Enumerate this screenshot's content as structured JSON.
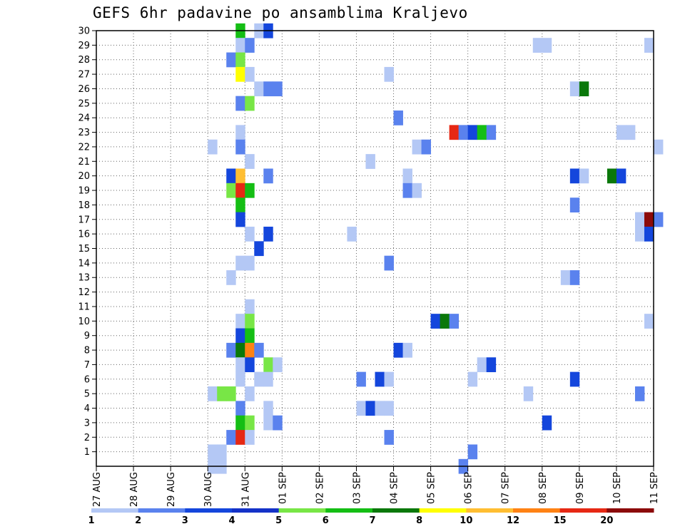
{
  "chart_data": {
    "type": "heatmap",
    "title": "GEFS 6hr padavine po ansamblima Kraljevo",
    "xlabel": "",
    "ylabel": "",
    "x_tick_labels": [
      "27 AUG",
      "28 AUG",
      "29 AUG",
      "30 AUG",
      "31 AUG",
      "01 SEP",
      "02 SEP",
      "03 SEP",
      "04 SEP",
      "05 SEP",
      "06 SEP",
      "07 SEP",
      "08 SEP",
      "09 SEP",
      "10 SEP",
      "11 SEP"
    ],
    "y_tick_labels": [
      "1",
      "2",
      "3",
      "4",
      "5",
      "6",
      "7",
      "8",
      "9",
      "10",
      "11",
      "12",
      "13",
      "14",
      "15",
      "16",
      "17",
      "18",
      "19",
      "20",
      "21",
      "22",
      "23",
      "24",
      "25",
      "26",
      "27",
      "28",
      "29",
      "30"
    ],
    "time_step_hours": 6,
    "member_range": [
      0,
      30
    ],
    "grid": true,
    "legend_placement": "bottom",
    "colorbar": {
      "labels": [
        "1",
        "2",
        "3",
        "4",
        "5",
        "6",
        "7",
        "8",
        "10",
        "12",
        "15",
        "20"
      ],
      "colors": [
        "#b4c8f5",
        "#5a82ee",
        "#1446dc",
        "#1432c8",
        "#78e646",
        "#14be14",
        "#0a780a",
        "#ffff00",
        "#ffbe32",
        "#ff8214",
        "#e62814",
        "#8c0a0a"
      ]
    },
    "cells": [
      {
        "member": 30,
        "date": "30 AUG 18Z",
        "cls": 6
      },
      {
        "member": 30,
        "date": "31 AUG 06Z",
        "cls": 1
      },
      {
        "member": 30,
        "date": "31 AUG 12Z",
        "cls": 3
      },
      {
        "member": 29,
        "date": "30 AUG 18Z",
        "cls": 1
      },
      {
        "member": 29,
        "date": "31 AUG 00Z",
        "cls": 2
      },
      {
        "member": 29,
        "date": "07 SEP 18Z",
        "cls": 1
      },
      {
        "member": 29,
        "date": "08 SEP 00Z",
        "cls": 1
      },
      {
        "member": 29,
        "date": "10 SEP 18Z",
        "cls": 1
      },
      {
        "member": 28,
        "date": "30 AUG 12Z",
        "cls": 2
      },
      {
        "member": 28,
        "date": "30 AUG 18Z",
        "cls": 5
      },
      {
        "member": 27,
        "date": "30 AUG 18Z",
        "cls": 8
      },
      {
        "member": 27,
        "date": "31 AUG 00Z",
        "cls": 1
      },
      {
        "member": 27,
        "date": "03 SEP 18Z",
        "cls": 1
      },
      {
        "member": 26,
        "date": "31 AUG 06Z",
        "cls": 1
      },
      {
        "member": 26,
        "date": "31 AUG 12Z",
        "cls": 2
      },
      {
        "member": 26,
        "date": "31 AUG 18Z",
        "cls": 2
      },
      {
        "member": 26,
        "date": "08 SEP 18Z",
        "cls": 1
      },
      {
        "member": 26,
        "date": "09 SEP 00Z",
        "cls": 7
      },
      {
        "member": 25,
        "date": "30 AUG 18Z",
        "cls": 2
      },
      {
        "member": 25,
        "date": "31 AUG 00Z",
        "cls": 5
      },
      {
        "member": 24,
        "date": "04 SEP 00Z",
        "cls": 2
      },
      {
        "member": 23,
        "date": "30 AUG 18Z",
        "cls": 1
      },
      {
        "member": 23,
        "date": "05 SEP 12Z",
        "cls": 11
      },
      {
        "member": 23,
        "date": "05 SEP 18Z",
        "cls": 2
      },
      {
        "member": 23,
        "date": "06 SEP 00Z",
        "cls": 3
      },
      {
        "member": 23,
        "date": "06 SEP 06Z",
        "cls": 6
      },
      {
        "member": 23,
        "date": "06 SEP 12Z",
        "cls": 2
      },
      {
        "member": 23,
        "date": "10 SEP 00Z",
        "cls": 1
      },
      {
        "member": 23,
        "date": "10 SEP 06Z",
        "cls": 1
      },
      {
        "member": 22,
        "date": "30 AUG 00Z",
        "cls": 1
      },
      {
        "member": 22,
        "date": "30 AUG 18Z",
        "cls": 2
      },
      {
        "member": 22,
        "date": "04 SEP 12Z",
        "cls": 1
      },
      {
        "member": 22,
        "date": "04 SEP 18Z",
        "cls": 2
      },
      {
        "member": 22,
        "date": "11 SEP 00Z",
        "cls": 1
      },
      {
        "member": 21,
        "date": "31 AUG 00Z",
        "cls": 1
      },
      {
        "member": 21,
        "date": "03 SEP 06Z",
        "cls": 1
      },
      {
        "member": 20,
        "date": "30 AUG 12Z",
        "cls": 3
      },
      {
        "member": 20,
        "date": "30 AUG 18Z",
        "cls": 9
      },
      {
        "member": 20,
        "date": "31 AUG 12Z",
        "cls": 2
      },
      {
        "member": 20,
        "date": "04 SEP 06Z",
        "cls": 1
      },
      {
        "member": 20,
        "date": "08 SEP 18Z",
        "cls": 3
      },
      {
        "member": 20,
        "date": "09 SEP 00Z",
        "cls": 1
      },
      {
        "member": 20,
        "date": "09 SEP 18Z",
        "cls": 7
      },
      {
        "member": 20,
        "date": "10 SEP 00Z",
        "cls": 3
      },
      {
        "member": 19,
        "date": "30 AUG 12Z",
        "cls": 5
      },
      {
        "member": 19,
        "date": "30 AUG 18Z",
        "cls": 11
      },
      {
        "member": 19,
        "date": "31 AUG 00Z",
        "cls": 6
      },
      {
        "member": 19,
        "date": "04 SEP 06Z",
        "cls": 2
      },
      {
        "member": 19,
        "date": "04 SEP 12Z",
        "cls": 1
      },
      {
        "member": 18,
        "date": "30 AUG 18Z",
        "cls": 6
      },
      {
        "member": 18,
        "date": "08 SEP 18Z",
        "cls": 2
      },
      {
        "member": 17,
        "date": "30 AUG 18Z",
        "cls": 3
      },
      {
        "member": 17,
        "date": "10 SEP 12Z",
        "cls": 1
      },
      {
        "member": 17,
        "date": "10 SEP 18Z",
        "cls": 12
      },
      {
        "member": 17,
        "date": "11 SEP 00Z",
        "cls": 2
      },
      {
        "member": 16,
        "date": "31 AUG 00Z",
        "cls": 1
      },
      {
        "member": 16,
        "date": "31 AUG 12Z",
        "cls": 3
      },
      {
        "member": 16,
        "date": "02 SEP 18Z",
        "cls": 1
      },
      {
        "member": 16,
        "date": "10 SEP 12Z",
        "cls": 1
      },
      {
        "member": 16,
        "date": "10 SEP 18Z",
        "cls": 3
      },
      {
        "member": 15,
        "date": "31 AUG 06Z",
        "cls": 3
      },
      {
        "member": 14,
        "date": "30 AUG 18Z",
        "cls": 1
      },
      {
        "member": 14,
        "date": "31 AUG 00Z",
        "cls": 1
      },
      {
        "member": 14,
        "date": "03 SEP 18Z",
        "cls": 2
      },
      {
        "member": 13,
        "date": "30 AUG 12Z",
        "cls": 1
      },
      {
        "member": 13,
        "date": "08 SEP 12Z",
        "cls": 1
      },
      {
        "member": 13,
        "date": "08 SEP 18Z",
        "cls": 2
      },
      {
        "member": 11,
        "date": "31 AUG 00Z",
        "cls": 1
      },
      {
        "member": 10,
        "date": "30 AUG 18Z",
        "cls": 1
      },
      {
        "member": 10,
        "date": "31 AUG 00Z",
        "cls": 5
      },
      {
        "member": 10,
        "date": "05 SEP 00Z",
        "cls": 3
      },
      {
        "member": 10,
        "date": "05 SEP 06Z",
        "cls": 7
      },
      {
        "member": 10,
        "date": "05 SEP 12Z",
        "cls": 2
      },
      {
        "member": 10,
        "date": "10 SEP 18Z",
        "cls": 1
      },
      {
        "member": 9,
        "date": "30 AUG 18Z",
        "cls": 3
      },
      {
        "member": 9,
        "date": "31 AUG 00Z",
        "cls": 6
      },
      {
        "member": 8,
        "date": "30 AUG 12Z",
        "cls": 2
      },
      {
        "member": 8,
        "date": "30 AUG 18Z",
        "cls": 7
      },
      {
        "member": 8,
        "date": "31 AUG 00Z",
        "cls": 10
      },
      {
        "member": 8,
        "date": "31 AUG 06Z",
        "cls": 2
      },
      {
        "member": 8,
        "date": "04 SEP 00Z",
        "cls": 3
      },
      {
        "member": 8,
        "date": "04 SEP 06Z",
        "cls": 1
      },
      {
        "member": 7,
        "date": "30 AUG 18Z",
        "cls": 1
      },
      {
        "member": 7,
        "date": "31 AUG 00Z",
        "cls": 3
      },
      {
        "member": 7,
        "date": "31 AUG 12Z",
        "cls": 5
      },
      {
        "member": 7,
        "date": "31 AUG 18Z",
        "cls": 1
      },
      {
        "member": 7,
        "date": "06 SEP 06Z",
        "cls": 1
      },
      {
        "member": 7,
        "date": "06 SEP 12Z",
        "cls": 3
      },
      {
        "member": 6,
        "date": "30 AUG 18Z",
        "cls": 1
      },
      {
        "member": 6,
        "date": "31 AUG 06Z",
        "cls": 1
      },
      {
        "member": 6,
        "date": "31 AUG 12Z",
        "cls": 1
      },
      {
        "member": 6,
        "date": "03 SEP 00Z",
        "cls": 2
      },
      {
        "member": 6,
        "date": "03 SEP 12Z",
        "cls": 3
      },
      {
        "member": 6,
        "date": "03 SEP 18Z",
        "cls": 1
      },
      {
        "member": 6,
        "date": "06 SEP 00Z",
        "cls": 1
      },
      {
        "member": 6,
        "date": "08 SEP 18Z",
        "cls": 3
      },
      {
        "member": 5,
        "date": "30 AUG 00Z",
        "cls": 1
      },
      {
        "member": 5,
        "date": "30 AUG 06Z",
        "cls": 5
      },
      {
        "member": 5,
        "date": "30 AUG 12Z",
        "cls": 5
      },
      {
        "member": 5,
        "date": "31 AUG 00Z",
        "cls": 1
      },
      {
        "member": 5,
        "date": "07 SEP 12Z",
        "cls": 1
      },
      {
        "member": 5,
        "date": "10 SEP 12Z",
        "cls": 2
      },
      {
        "member": 4,
        "date": "30 AUG 18Z",
        "cls": 2
      },
      {
        "member": 4,
        "date": "31 AUG 12Z",
        "cls": 1
      },
      {
        "member": 4,
        "date": "03 SEP 00Z",
        "cls": 1
      },
      {
        "member": 4,
        "date": "03 SEP 06Z",
        "cls": 3
      },
      {
        "member": 4,
        "date": "03 SEP 12Z",
        "cls": 1
      },
      {
        "member": 4,
        "date": "03 SEP 18Z",
        "cls": 1
      },
      {
        "member": 3,
        "date": "30 AUG 18Z",
        "cls": 6
      },
      {
        "member": 3,
        "date": "31 AUG 00Z",
        "cls": 5
      },
      {
        "member": 3,
        "date": "31 AUG 12Z",
        "cls": 1
      },
      {
        "member": 3,
        "date": "31 AUG 18Z",
        "cls": 2
      },
      {
        "member": 3,
        "date": "08 SEP 00Z",
        "cls": 3
      },
      {
        "member": 2,
        "date": "30 AUG 12Z",
        "cls": 2
      },
      {
        "member": 2,
        "date": "30 AUG 18Z",
        "cls": 11
      },
      {
        "member": 2,
        "date": "31 AUG 00Z",
        "cls": 1
      },
      {
        "member": 2,
        "date": "03 SEP 18Z",
        "cls": 2
      },
      {
        "member": 1,
        "date": "30 AUG 00Z",
        "cls": 1
      },
      {
        "member": 1,
        "date": "30 AUG 06Z",
        "cls": 1
      },
      {
        "member": 1,
        "date": "06 SEP 00Z",
        "cls": 2
      },
      {
        "member": 0,
        "date": "30 AUG 00Z",
        "cls": 1
      },
      {
        "member": 0,
        "date": "30 AUG 06Z",
        "cls": 1
      },
      {
        "member": 0,
        "date": "05 SEP 18Z",
        "cls": 2
      }
    ]
  }
}
